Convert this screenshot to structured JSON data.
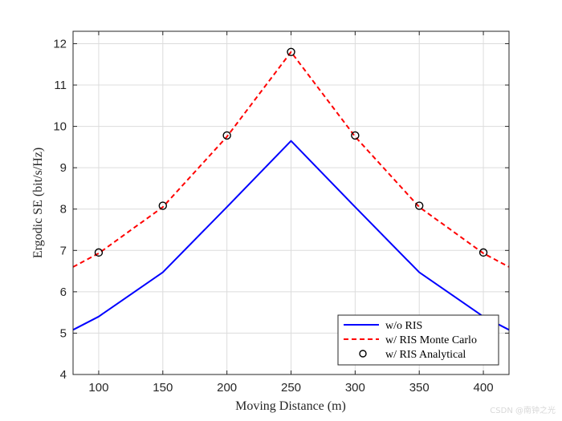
{
  "chart_data": {
    "type": "line",
    "title": "",
    "xlabel": "Moving Distance (m)",
    "ylabel": "Ergodic SE (bit/s/Hz)",
    "xlim": [
      80,
      420
    ],
    "ylim": [
      4,
      12.3
    ],
    "xticks": [
      100,
      150,
      200,
      250,
      300,
      350,
      400
    ],
    "yticks": [
      4,
      5,
      6,
      7,
      8,
      9,
      10,
      11,
      12
    ],
    "grid": true,
    "legend_position": "bottom-right",
    "series": [
      {
        "name": "w/o RIS",
        "style": "solid",
        "color": "#0000ff",
        "x": [
          80,
          100,
          150,
          200,
          250,
          300,
          350,
          400,
          420
        ],
        "y": [
          5.08,
          5.4,
          6.47,
          8.05,
          9.65,
          8.05,
          6.47,
          5.4,
          5.08
        ]
      },
      {
        "name": "w/ RIS Monte Carlo",
        "style": "dashed",
        "color": "#ff0000",
        "x": [
          80,
          100,
          150,
          200,
          250,
          300,
          350,
          400,
          420
        ],
        "y": [
          6.6,
          6.93,
          8.05,
          9.75,
          11.8,
          9.75,
          8.05,
          6.93,
          6.6
        ]
      },
      {
        "name": "w/ RIS Analytical",
        "style": "markers",
        "marker": "circle",
        "color": "#000000",
        "x": [
          100,
          150,
          200,
          250,
          300,
          350,
          400
        ],
        "y": [
          6.95,
          8.08,
          9.78,
          11.8,
          9.78,
          8.08,
          6.95
        ]
      }
    ]
  },
  "watermark": "CSDN @南钟之光"
}
